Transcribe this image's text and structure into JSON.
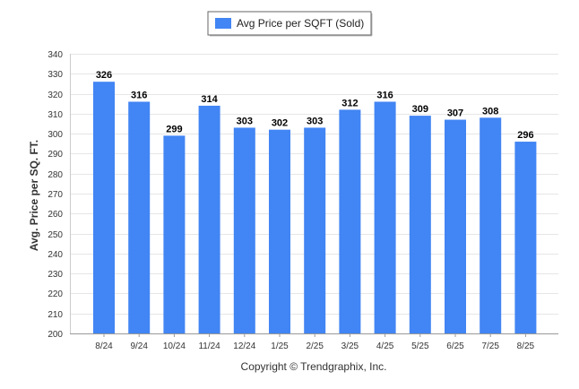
{
  "chart_data": {
    "type": "bar",
    "categories": [
      "8/24",
      "9/24",
      "10/24",
      "11/24",
      "12/24",
      "1/25",
      "2/25",
      "3/25",
      "4/25",
      "5/25",
      "6/25",
      "7/25",
      "8/25"
    ],
    "series": [
      {
        "name": "Avg Price per SQFT (Sold)",
        "values": [
          326,
          316,
          299,
          314,
          303,
          302,
          303,
          312,
          316,
          309,
          307,
          308,
          296
        ],
        "color": "#4285f4"
      }
    ],
    "xlabel": "",
    "ylabel": "Avg. Price per SQ. FT.",
    "ylim": [
      200,
      340
    ],
    "yticks": [
      200,
      210,
      220,
      230,
      240,
      250,
      260,
      270,
      280,
      290,
      300,
      310,
      320,
      330,
      340
    ],
    "grid": true,
    "legend_position": "top-center",
    "data_labels": true
  },
  "footer": {
    "copyright": "Copyright © Trendgraphix, Inc."
  }
}
